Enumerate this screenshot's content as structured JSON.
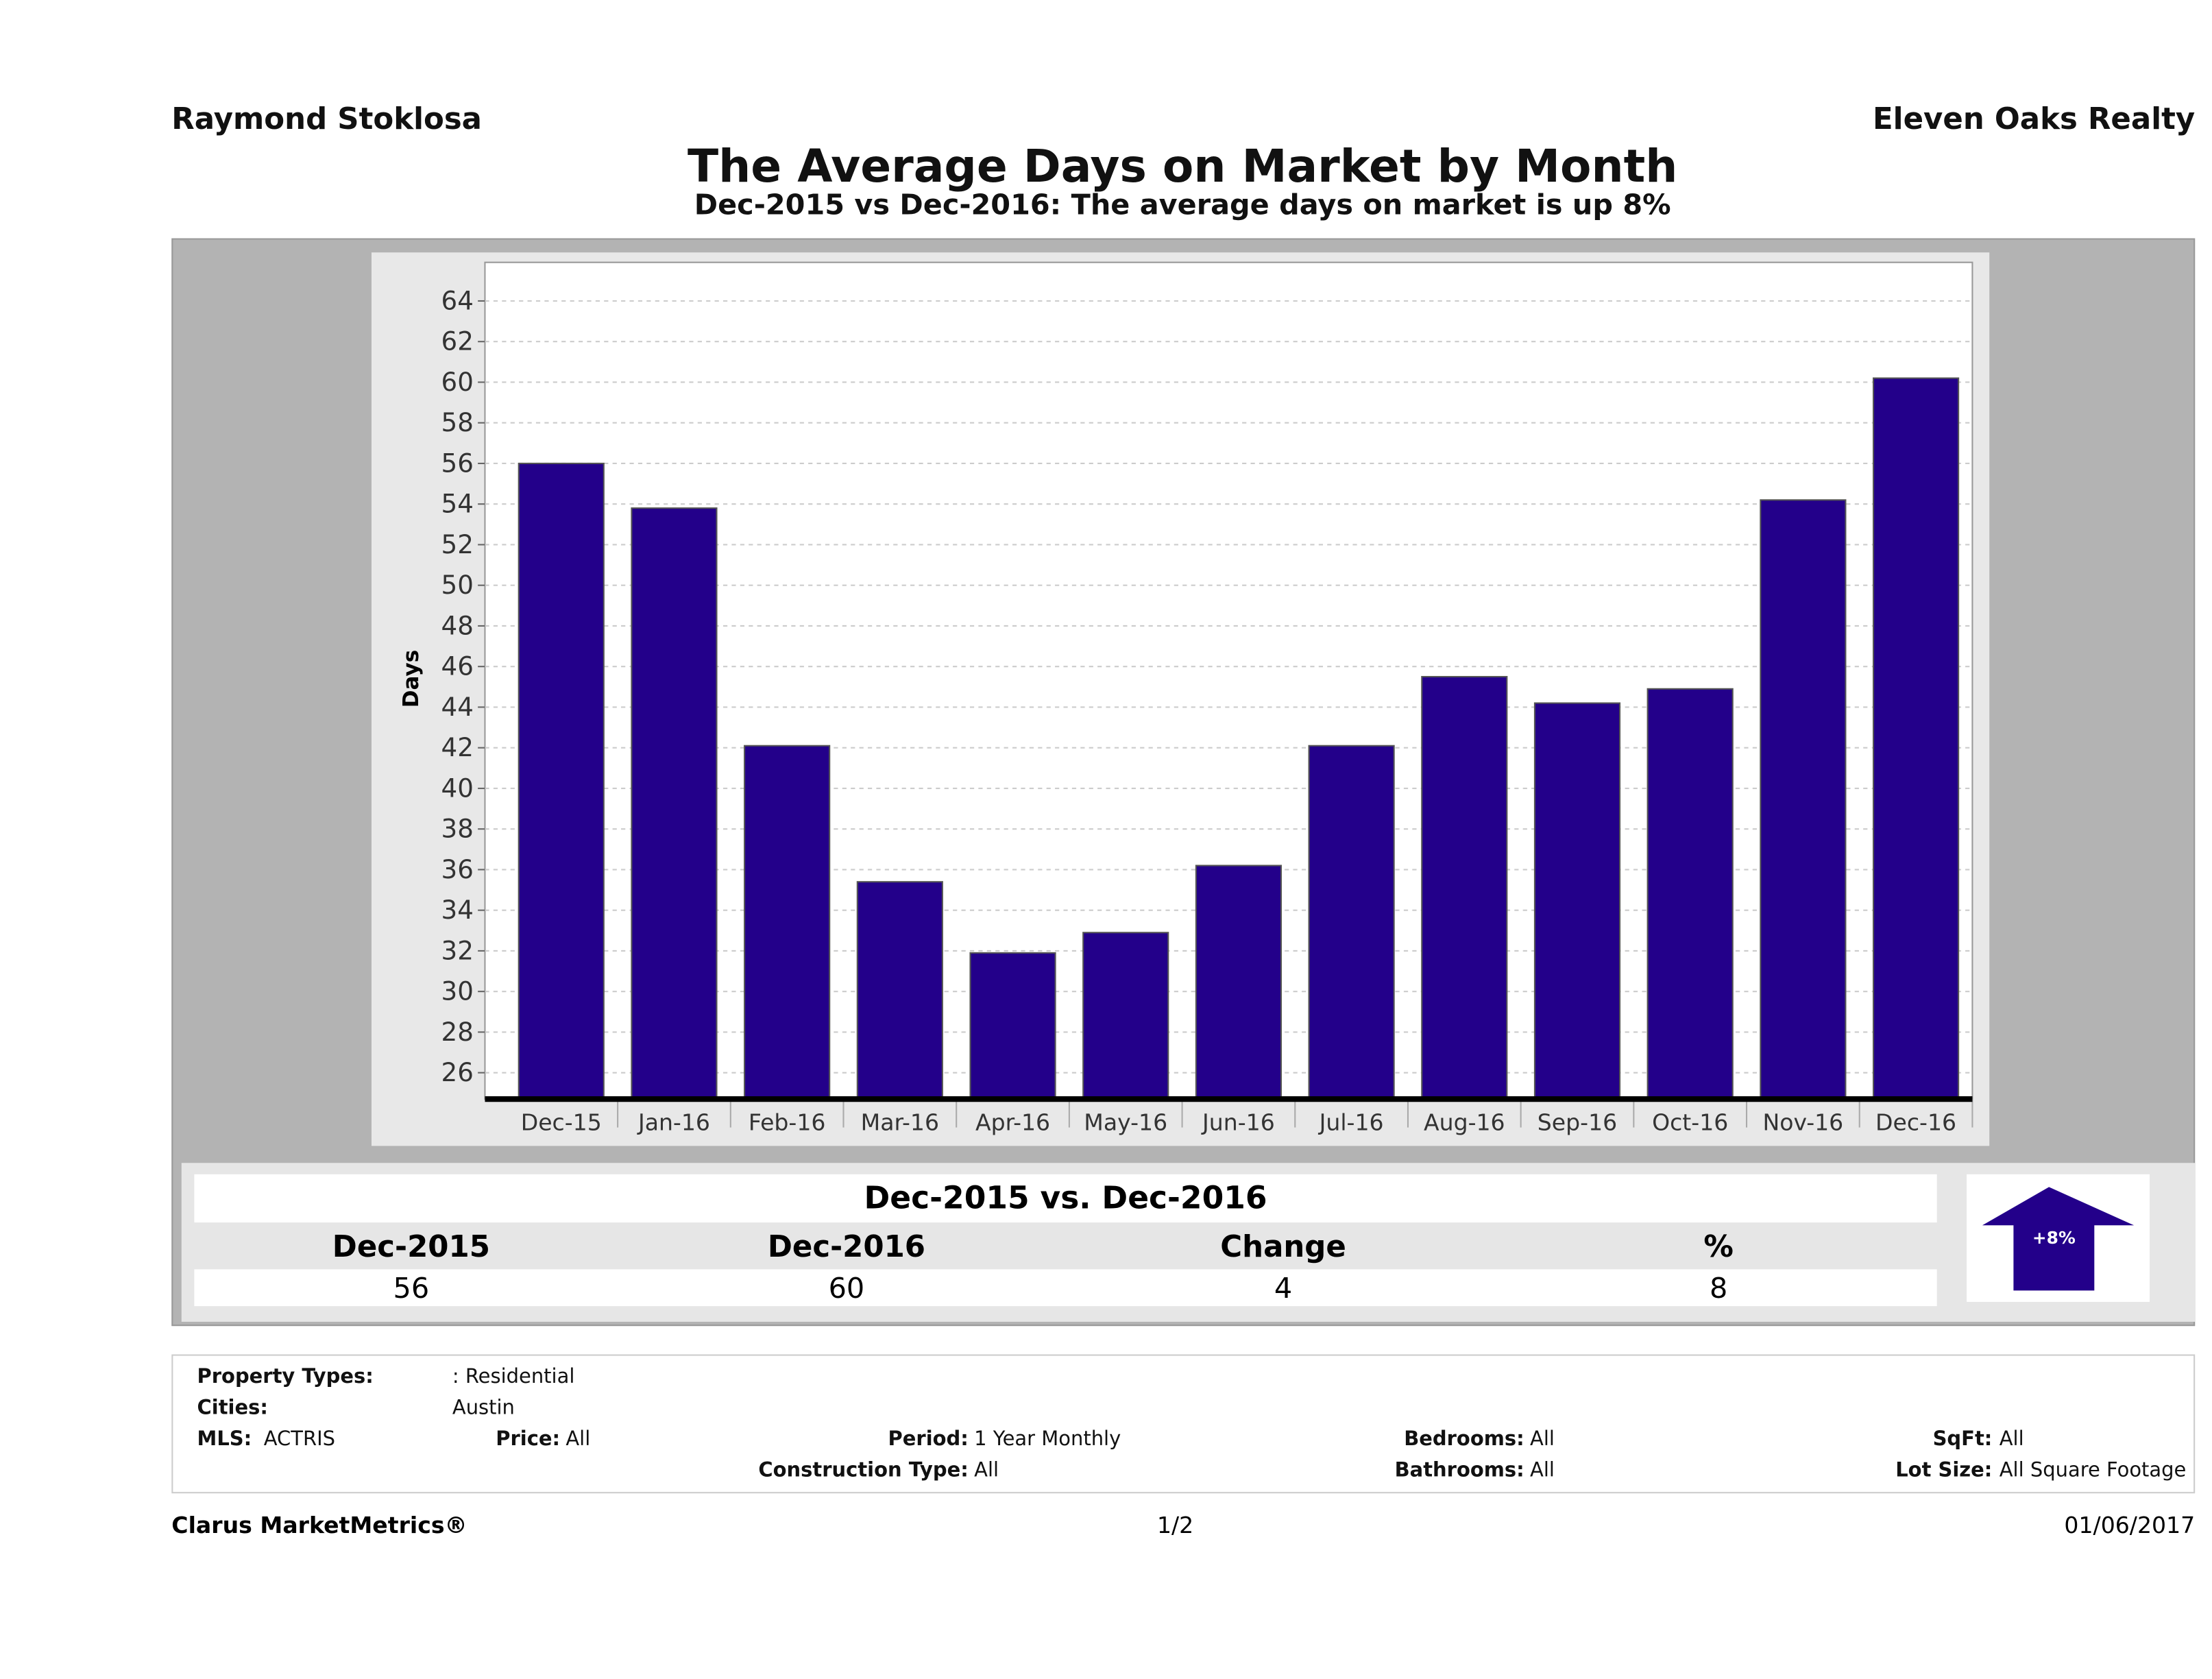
{
  "header": {
    "agent": "Raymond Stoklosa",
    "brokerage": "Eleven Oaks Realty"
  },
  "chart_data": {
    "type": "bar",
    "title": "The Average Days on Market by Month",
    "subtitle": "Dec-2015 vs Dec-2016: The average days on market is up 8%",
    "xlabel": "",
    "ylabel": "Days",
    "categories": [
      "Dec-15",
      "Jan-16",
      "Feb-16",
      "Mar-16",
      "Apr-16",
      "May-16",
      "Jun-16",
      "Jul-16",
      "Aug-16",
      "Sep-16",
      "Oct-16",
      "Nov-16",
      "Dec-16"
    ],
    "values": [
      56,
      53.8,
      42.1,
      35.4,
      31.9,
      32.9,
      36.2,
      42.1,
      45.5,
      44.2,
      44.9,
      54.2,
      60.2
    ],
    "ylim": [
      24.7,
      65.9
    ],
    "yticks": [
      26,
      28,
      30,
      32,
      34,
      36,
      38,
      40,
      42,
      44,
      46,
      48,
      50,
      52,
      54,
      56,
      58,
      60,
      62,
      64
    ],
    "grid": true,
    "bar_color": "#23008a"
  },
  "comparison": {
    "title": "Dec-2015 vs. Dec-2016",
    "headers": [
      "Dec-2015",
      "Dec-2016",
      "Change",
      "%"
    ],
    "values": [
      "56",
      "60",
      "4",
      "8"
    ],
    "badge": "+8%",
    "direction": "up"
  },
  "info": {
    "property_types_label": "Property Types:",
    "property_types": ": Residential",
    "cities_label": "Cities:",
    "cities": "Austin",
    "mls_label": "MLS:",
    "mls": "ACTRIS",
    "price_label": "Price:",
    "price": "All",
    "period_label": "Period:",
    "period": "1 Year Monthly",
    "bedrooms_label": "Bedrooms:",
    "bedrooms": "All",
    "sqft_label": "SqFt:",
    "sqft": "All",
    "construction_label": "Construction Type:",
    "construction": "All",
    "bathrooms_label": "Bathrooms:",
    "bathrooms": "All",
    "lot_label": "Lot Size:",
    "lot": "All Square Footage"
  },
  "footer": {
    "brand": "Clarus MarketMetrics®",
    "page": "1/2",
    "date": "01/06/2017"
  }
}
